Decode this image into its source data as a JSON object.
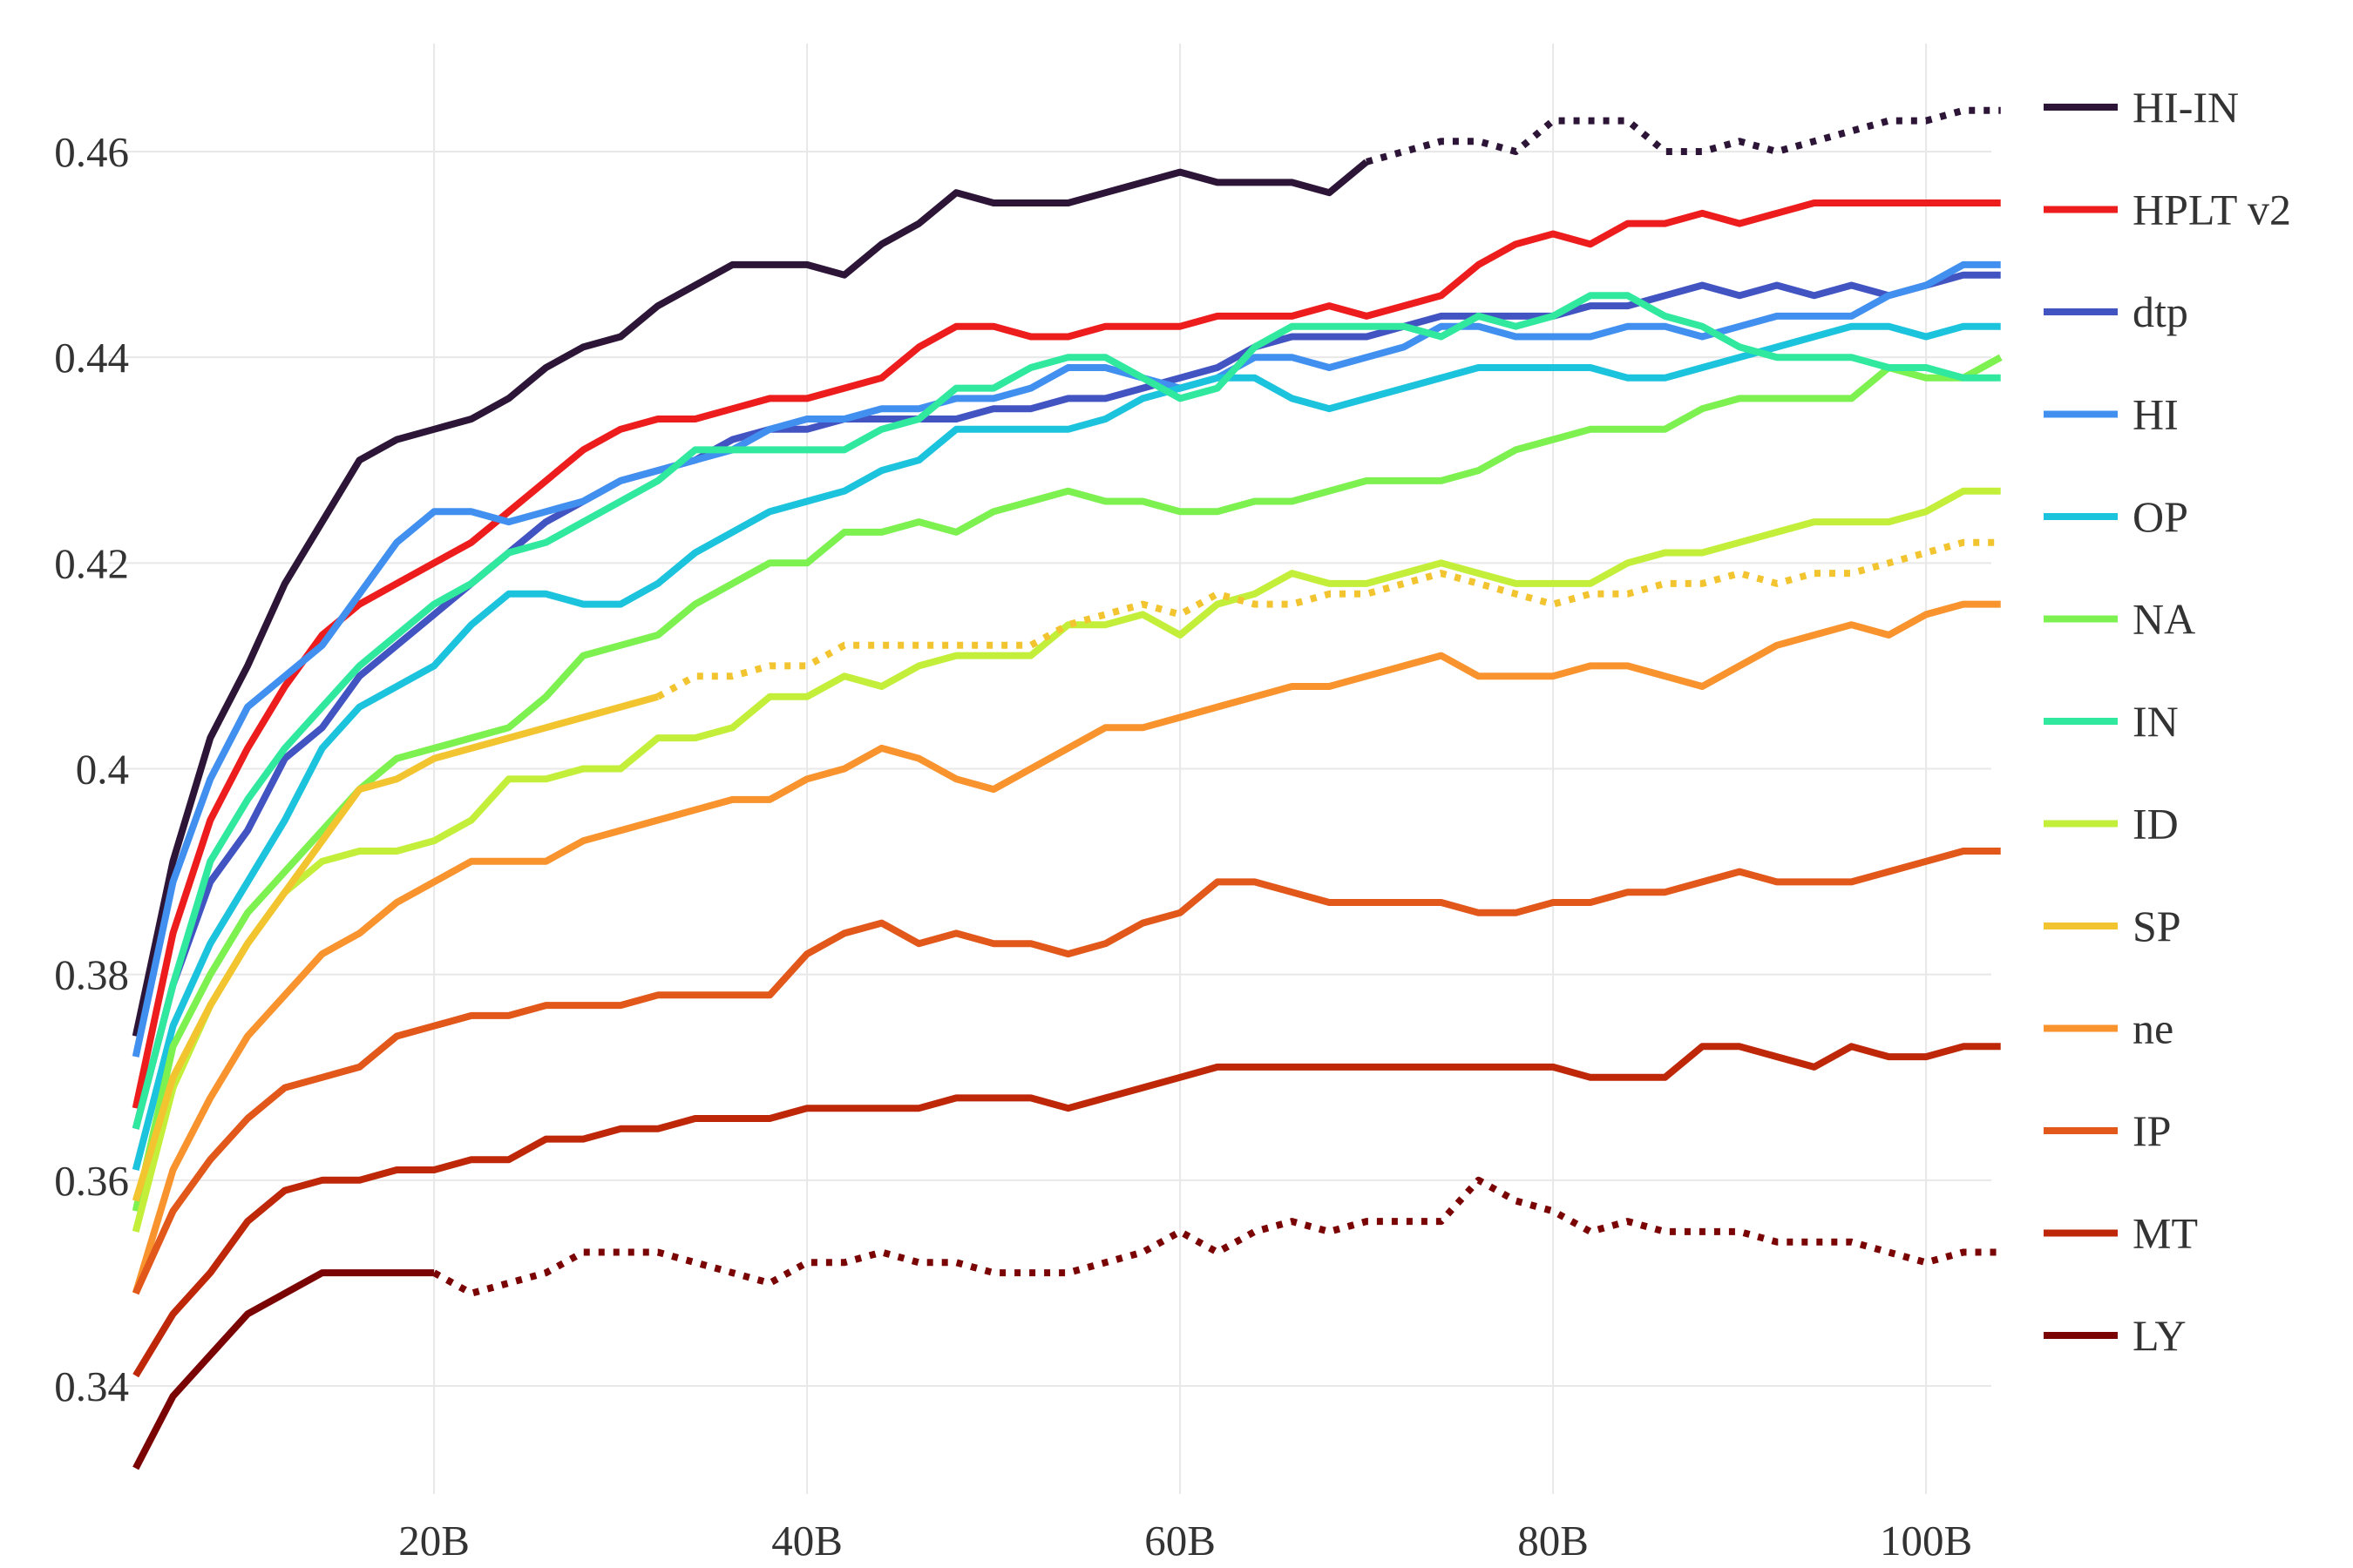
{
  "chart_data": {
    "type": "line",
    "title": "",
    "xlabel": "",
    "ylabel": "",
    "xlim": [
      3.5,
      103.5
    ],
    "ylim": [
      0.3295,
      0.4705
    ],
    "grid": true,
    "legend_position": "right",
    "x_ticks": [
      {
        "value": 20,
        "label": "20B"
      },
      {
        "value": 40,
        "label": "40B"
      },
      {
        "value": 60,
        "label": "60B"
      },
      {
        "value": 80,
        "label": "80B"
      },
      {
        "value": 100,
        "label": "100B"
      }
    ],
    "y_ticks": [
      {
        "value": 0.34,
        "label": "0.34"
      },
      {
        "value": 0.36,
        "label": "0.36"
      },
      {
        "value": 0.38,
        "label": "0.38"
      },
      {
        "value": 0.4,
        "label": "0.4"
      },
      {
        "value": 0.42,
        "label": "0.42"
      },
      {
        "value": 0.44,
        "label": "0.44"
      },
      {
        "value": 0.46,
        "label": "0.46"
      }
    ],
    "x": [
      4,
      6,
      8,
      10,
      12,
      14,
      16,
      18,
      20,
      22,
      24,
      26,
      28,
      30,
      32,
      34,
      36,
      38,
      40,
      42,
      44,
      46,
      48,
      50,
      52,
      54,
      56,
      58,
      60,
      62,
      64,
      66,
      68,
      70,
      72,
      74,
      76,
      78,
      80,
      82,
      84,
      86,
      88,
      90,
      92,
      94,
      96,
      98,
      100,
      102,
      104
    ],
    "series": [
      {
        "name": "HI-IN",
        "color": "#2d1537",
        "solid_until": 70,
        "values": [
          0.374,
          0.391,
          0.403,
          0.41,
          0.418,
          0.424,
          0.43,
          0.432,
          0.433,
          0.434,
          0.436,
          0.439,
          0.441,
          0.442,
          0.445,
          0.447,
          0.449,
          0.449,
          0.449,
          0.448,
          0.451,
          0.453,
          0.456,
          0.455,
          0.455,
          0.455,
          0.456,
          0.457,
          0.458,
          0.457,
          0.457,
          0.457,
          0.456,
          0.459,
          0.46,
          0.461,
          0.461,
          0.46,
          0.463,
          0.463,
          0.463,
          0.46,
          0.46,
          0.461,
          0.46,
          0.461,
          0.462,
          0.463,
          0.463,
          0.464,
          0.464
        ]
      },
      {
        "name": "HPLT v2",
        "color": "#ee1d1d",
        "values": [
          0.367,
          0.384,
          0.395,
          0.402,
          0.408,
          0.413,
          0.416,
          0.418,
          0.42,
          0.422,
          0.425,
          0.428,
          0.431,
          0.433,
          0.434,
          0.434,
          0.435,
          0.436,
          0.436,
          0.437,
          0.438,
          0.441,
          0.443,
          0.443,
          0.442,
          0.442,
          0.443,
          0.443,
          0.443,
          0.444,
          0.444,
          0.444,
          0.445,
          0.444,
          0.445,
          0.446,
          0.449,
          0.451,
          0.452,
          0.451,
          0.453,
          0.453,
          0.454,
          0.453,
          0.454,
          0.455,
          0.455,
          0.455,
          0.455,
          0.455,
          0.455
        ]
      },
      {
        "name": "dtp",
        "color": "#4254c2",
        "values": [
          0.365,
          0.379,
          0.389,
          0.394,
          0.401,
          0.404,
          0.409,
          0.412,
          0.415,
          0.418,
          0.421,
          0.424,
          0.426,
          0.428,
          0.429,
          0.43,
          0.432,
          0.433,
          0.433,
          0.434,
          0.434,
          0.434,
          0.434,
          0.435,
          0.435,
          0.436,
          0.436,
          0.437,
          0.438,
          0.439,
          0.441,
          0.442,
          0.442,
          0.442,
          0.443,
          0.444,
          0.444,
          0.444,
          0.444,
          0.445,
          0.445,
          0.446,
          0.447,
          0.446,
          0.447,
          0.446,
          0.447,
          0.446,
          0.447,
          0.448,
          0.448
        ]
      },
      {
        "name": "HI",
        "color": "#4190f0",
        "values": [
          0.372,
          0.389,
          0.399,
          0.406,
          0.409,
          0.412,
          0.417,
          0.422,
          0.425,
          0.425,
          0.424,
          0.425,
          0.426,
          0.428,
          0.429,
          0.43,
          0.431,
          0.433,
          0.434,
          0.434,
          0.435,
          0.435,
          0.436,
          0.436,
          0.437,
          0.439,
          0.439,
          0.438,
          0.437,
          0.438,
          0.44,
          0.44,
          0.439,
          0.44,
          0.441,
          0.443,
          0.443,
          0.442,
          0.442,
          0.442,
          0.443,
          0.443,
          0.442,
          0.443,
          0.444,
          0.444,
          0.444,
          0.446,
          0.447,
          0.449,
          0.449
        ]
      },
      {
        "name": "OP",
        "color": "#1bc3dc",
        "values": [
          0.361,
          0.375,
          0.383,
          0.389,
          0.395,
          0.402,
          0.406,
          0.408,
          0.41,
          0.414,
          0.417,
          0.417,
          0.416,
          0.416,
          0.418,
          0.421,
          0.423,
          0.425,
          0.426,
          0.427,
          0.429,
          0.43,
          0.433,
          0.433,
          0.433,
          0.433,
          0.434,
          0.436,
          0.437,
          0.438,
          0.438,
          0.436,
          0.435,
          0.436,
          0.437,
          0.438,
          0.439,
          0.439,
          0.439,
          0.439,
          0.438,
          0.438,
          0.439,
          0.44,
          0.441,
          0.442,
          0.443,
          0.443,
          0.442,
          0.443,
          0.443
        ]
      },
      {
        "name": "NA",
        "color": "#7df150",
        "values": [
          0.357,
          0.373,
          0.38,
          0.386,
          0.39,
          0.394,
          0.398,
          0.401,
          0.402,
          0.403,
          0.404,
          0.407,
          0.411,
          0.412,
          0.413,
          0.416,
          0.418,
          0.42,
          0.42,
          0.423,
          0.423,
          0.424,
          0.423,
          0.425,
          0.426,
          0.427,
          0.426,
          0.426,
          0.425,
          0.425,
          0.426,
          0.426,
          0.427,
          0.428,
          0.428,
          0.428,
          0.429,
          0.431,
          0.432,
          0.433,
          0.433,
          0.433,
          0.435,
          0.436,
          0.436,
          0.436,
          0.436,
          0.439,
          0.438,
          0.438,
          0.44
        ]
      },
      {
        "name": "IN",
        "color": "#30e89e",
        "values": [
          0.365,
          0.379,
          0.391,
          0.397,
          0.402,
          0.406,
          0.41,
          0.413,
          0.416,
          0.418,
          0.421,
          0.422,
          0.424,
          0.426,
          0.428,
          0.431,
          0.431,
          0.431,
          0.431,
          0.431,
          0.433,
          0.434,
          0.437,
          0.437,
          0.439,
          0.44,
          0.44,
          0.438,
          0.436,
          0.437,
          0.441,
          0.443,
          0.443,
          0.443,
          0.443,
          0.442,
          0.444,
          0.443,
          0.444,
          0.446,
          0.446,
          0.444,
          0.443,
          0.441,
          0.44,
          0.44,
          0.44,
          0.439,
          0.439,
          0.438,
          0.438
        ]
      },
      {
        "name": "ID",
        "color": "#c3ef3b",
        "values": [
          0.355,
          0.369,
          0.377,
          0.383,
          0.388,
          0.391,
          0.392,
          0.392,
          0.393,
          0.395,
          0.399,
          0.399,
          0.4,
          0.4,
          0.403,
          0.403,
          0.404,
          0.407,
          0.407,
          0.409,
          0.408,
          0.41,
          0.411,
          0.411,
          0.411,
          0.414,
          0.414,
          0.415,
          0.413,
          0.416,
          0.417,
          0.419,
          0.418,
          0.418,
          0.419,
          0.42,
          0.419,
          0.418,
          0.418,
          0.418,
          0.42,
          0.421,
          0.421,
          0.422,
          0.423,
          0.424,
          0.424,
          0.424,
          0.425,
          0.427,
          0.427
        ]
      },
      {
        "name": "SP",
        "color": "#f2c530",
        "solid_until": 32,
        "values": [
          0.358,
          0.37,
          0.377,
          0.383,
          0.388,
          0.393,
          0.398,
          0.399,
          0.401,
          0.402,
          0.403,
          0.404,
          0.405,
          0.406,
          0.407,
          0.409,
          0.409,
          0.41,
          0.41,
          0.412,
          0.412,
          0.412,
          0.412,
          0.412,
          0.412,
          0.414,
          0.415,
          0.416,
          0.415,
          0.417,
          0.416,
          0.416,
          0.417,
          0.417,
          0.418,
          0.419,
          0.418,
          0.417,
          0.416,
          0.417,
          0.417,
          0.418,
          0.418,
          0.419,
          0.418,
          0.419,
          0.419,
          0.42,
          0.421,
          0.422,
          0.422
        ]
      },
      {
        "name": "ne",
        "color": "#f8932e",
        "values": [
          0.349,
          0.361,
          0.368,
          0.374,
          0.378,
          0.382,
          0.384,
          0.387,
          0.389,
          0.391,
          0.391,
          0.391,
          0.393,
          0.394,
          0.395,
          0.396,
          0.397,
          0.397,
          0.399,
          0.4,
          0.402,
          0.401,
          0.399,
          0.398,
          0.4,
          0.402,
          0.404,
          0.404,
          0.405,
          0.406,
          0.407,
          0.408,
          0.408,
          0.409,
          0.41,
          0.411,
          0.409,
          0.409,
          0.409,
          0.41,
          0.41,
          0.409,
          0.408,
          0.41,
          0.412,
          0.413,
          0.414,
          0.413,
          0.415,
          0.416,
          0.416
        ]
      },
      {
        "name": "IP",
        "color": "#e2571a",
        "values": [
          0.349,
          0.357,
          0.362,
          0.366,
          0.369,
          0.37,
          0.371,
          0.374,
          0.375,
          0.376,
          0.376,
          0.377,
          0.377,
          0.377,
          0.378,
          0.378,
          0.378,
          0.378,
          0.382,
          0.384,
          0.385,
          0.383,
          0.384,
          0.383,
          0.383,
          0.382,
          0.383,
          0.385,
          0.386,
          0.389,
          0.389,
          0.388,
          0.387,
          0.387,
          0.387,
          0.387,
          0.386,
          0.386,
          0.387,
          0.387,
          0.388,
          0.388,
          0.389,
          0.39,
          0.389,
          0.389,
          0.389,
          0.39,
          0.391,
          0.392,
          0.392
        ]
      },
      {
        "name": "MT",
        "color": "#be2809",
        "values": [
          0.341,
          0.347,
          0.351,
          0.356,
          0.359,
          0.36,
          0.36,
          0.361,
          0.361,
          0.362,
          0.362,
          0.364,
          0.364,
          0.365,
          0.365,
          0.366,
          0.366,
          0.366,
          0.367,
          0.367,
          0.367,
          0.367,
          0.368,
          0.368,
          0.368,
          0.367,
          0.368,
          0.369,
          0.37,
          0.371,
          0.371,
          0.371,
          0.371,
          0.371,
          0.371,
          0.371,
          0.371,
          0.371,
          0.371,
          0.37,
          0.37,
          0.37,
          0.373,
          0.373,
          0.372,
          0.371,
          0.373,
          0.372,
          0.372,
          0.373,
          0.373
        ]
      },
      {
        "name": "LY",
        "color": "#7a0403",
        "solid_until": 20,
        "values": [
          0.332,
          0.339,
          0.343,
          0.347,
          0.349,
          0.351,
          0.351,
          0.351,
          0.351,
          0.349,
          0.35,
          0.351,
          0.353,
          0.353,
          0.353,
          0.352,
          0.351,
          0.35,
          0.352,
          0.352,
          0.353,
          0.352,
          0.352,
          0.351,
          0.351,
          0.351,
          0.352,
          0.353,
          0.355,
          0.353,
          0.355,
          0.356,
          0.355,
          0.356,
          0.356,
          0.356,
          0.36,
          0.358,
          0.357,
          0.355,
          0.356,
          0.355,
          0.355,
          0.355,
          0.354,
          0.354,
          0.354,
          0.353,
          0.352,
          0.353,
          0.353
        ]
      }
    ]
  }
}
